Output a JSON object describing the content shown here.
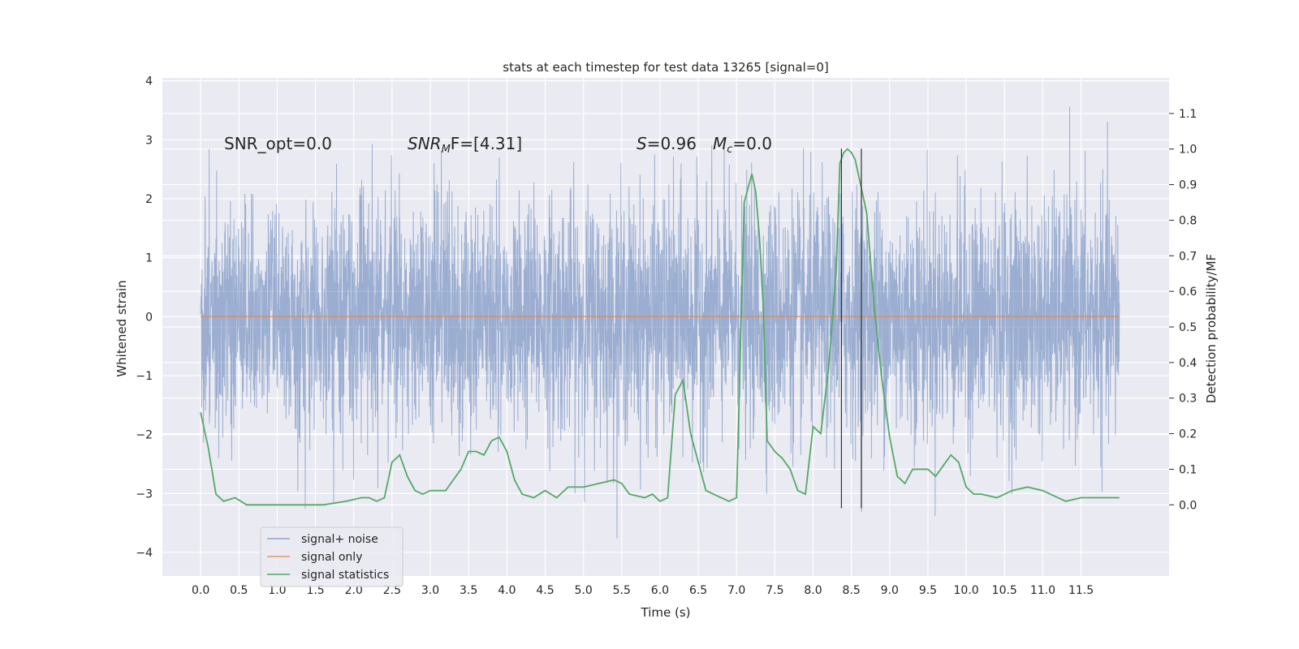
{
  "chart_data": {
    "type": "line",
    "title": "stats at each timestep for test data 13265 [signal=0]",
    "xlabel": "Time (s)",
    "ylabel": "Whitened strain",
    "y2label": "Detection probability/MF",
    "xlim": [
      -0.5,
      12.65
    ],
    "ylim": [
      -4.4,
      4.05
    ],
    "y2lim": [
      -0.2,
      1.2
    ],
    "xticks": [
      "0.0",
      "0.5",
      "1.0",
      "1.5",
      "2.0",
      "2.5",
      "3.0",
      "3.5",
      "4.0",
      "4.5",
      "5.0",
      "5.5",
      "6.0",
      "6.5",
      "7.0",
      "7.5",
      "8.0",
      "8.5",
      "9.0",
      "9.5",
      "10.0",
      "10.5",
      "11.0",
      "11.5"
    ],
    "yticks": [
      "−4",
      "−3",
      "−2",
      "−1",
      "0",
      "1",
      "2",
      "3",
      "4"
    ],
    "y2ticks": [
      "0.0",
      "0.1",
      "0.2",
      "0.3",
      "0.4",
      "0.5",
      "0.6",
      "0.7",
      "0.8",
      "0.9",
      "1.0",
      "1.1"
    ],
    "grid": true,
    "legend_position": "lower-left",
    "annotations": {
      "snr_opt": "SNR_opt=0.0",
      "snr_mf_sym": "SNR",
      "snr_mf_sub": "M",
      "snr_mf_rest": "F=[4.31]",
      "s_sym": "S",
      "s_val": "=0.96",
      "mc_sym": "M",
      "mc_sub": "c",
      "mc_val": "=0.0"
    },
    "colors": {
      "background": "#eaeaf2",
      "grid": "#ffffff",
      "noise": "#4c72b0",
      "signal": "#dd8452",
      "stats": "#55a868",
      "markers": "#333333"
    },
    "series": [
      {
        "name": "signal+ noise",
        "axis": "left",
        "style": "dense-noise",
        "x_range": [
          0.0,
          12.0
        ],
        "sigma": 1.0,
        "min": -4.1,
        "max": 3.65
      },
      {
        "name": "signal only",
        "axis": "left",
        "x": [
          0.0,
          12.0
        ],
        "y": [
          0.0,
          0.0
        ]
      },
      {
        "name": "signal statistics",
        "axis": "right",
        "x": [
          0.0,
          0.1,
          0.2,
          0.3,
          0.45,
          0.6,
          0.8,
          1.0,
          1.3,
          1.6,
          1.9,
          2.1,
          2.2,
          2.3,
          2.4,
          2.5,
          2.6,
          2.7,
          2.8,
          2.9,
          3.0,
          3.2,
          3.4,
          3.5,
          3.6,
          3.7,
          3.8,
          3.9,
          4.0,
          4.1,
          4.2,
          4.35,
          4.5,
          4.65,
          4.8,
          5.0,
          5.2,
          5.4,
          5.5,
          5.6,
          5.8,
          5.9,
          6.0,
          6.1,
          6.2,
          6.3,
          6.4,
          6.5,
          6.6,
          6.7,
          6.8,
          6.9,
          7.0,
          7.1,
          7.2,
          7.25,
          7.3,
          7.35,
          7.4,
          7.5,
          7.6,
          7.7,
          7.8,
          7.9,
          8.0,
          8.1,
          8.2,
          8.3,
          8.35,
          8.4,
          8.45,
          8.5,
          8.55,
          8.6,
          8.7,
          8.8,
          8.9,
          9.0,
          9.1,
          9.2,
          9.3,
          9.5,
          9.6,
          9.7,
          9.8,
          9.9,
          10.0,
          10.1,
          10.2,
          10.4,
          10.6,
          10.8,
          11.0,
          11.1,
          11.3,
          11.5,
          11.7,
          11.9,
          12.0
        ],
        "y": [
          0.26,
          0.16,
          0.03,
          0.01,
          0.02,
          0.0,
          0.0,
          0.0,
          0.0,
          0.0,
          0.01,
          0.02,
          0.02,
          0.01,
          0.02,
          0.12,
          0.14,
          0.08,
          0.04,
          0.03,
          0.04,
          0.04,
          0.1,
          0.15,
          0.15,
          0.14,
          0.18,
          0.19,
          0.15,
          0.07,
          0.03,
          0.02,
          0.04,
          0.02,
          0.05,
          0.05,
          0.06,
          0.07,
          0.06,
          0.03,
          0.02,
          0.03,
          0.01,
          0.02,
          0.31,
          0.35,
          0.2,
          0.12,
          0.04,
          0.03,
          0.02,
          0.01,
          0.02,
          0.85,
          0.93,
          0.88,
          0.75,
          0.55,
          0.18,
          0.15,
          0.13,
          0.1,
          0.04,
          0.03,
          0.22,
          0.2,
          0.38,
          0.65,
          0.96,
          0.99,
          1.0,
          0.99,
          0.97,
          0.92,
          0.82,
          0.55,
          0.35,
          0.19,
          0.08,
          0.06,
          0.1,
          0.1,
          0.08,
          0.11,
          0.14,
          0.12,
          0.05,
          0.03,
          0.03,
          0.02,
          0.04,
          0.05,
          0.04,
          0.03,
          0.01,
          0.02,
          0.02,
          0.02,
          0.02
        ]
      }
    ],
    "markers": {
      "x": [
        8.37,
        8.63
      ],
      "ymin": -3.25,
      "ymax": 2.85
    }
  }
}
